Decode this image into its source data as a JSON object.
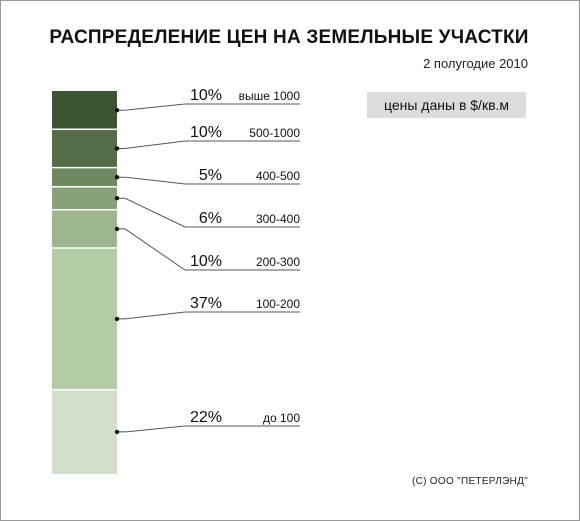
{
  "header": {
    "title": "РАСПРЕДЕЛЕНИЕ ЦЕН НА ЗЕМЕЛЬНЫЕ УЧАСТКИ",
    "subtitle": "2 полугодие 2010"
  },
  "note": "цены даны в $/кв.м",
  "copyright": "(С) ООО \"ПЕТЕРЛЭНД\"",
  "chart_data": {
    "type": "bar",
    "stacked": true,
    "title": "РАСПРЕДЕЛЕНИЕ ЦЕН НА ЗЕМЕЛЬНЫЕ УЧАСТКИ",
    "subtitle": "2 полугодие 2010",
    "unit": "%",
    "segments": [
      {
        "category": "выше 1000",
        "value": 10,
        "label": "10%",
        "color": "#3b5535"
      },
      {
        "category": "500-1000",
        "value": 10,
        "label": "10%",
        "color": "#556e49"
      },
      {
        "category": "400-500",
        "value": 5,
        "label": "5%",
        "color": "#6e8862"
      },
      {
        "category": "300-400",
        "value": 6,
        "label": "6%",
        "color": "#87a17b"
      },
      {
        "category": "200-300",
        "value": 10,
        "label": "10%",
        "color": "#9db690"
      },
      {
        "category": "100-200",
        "value": 37,
        "label": "37%",
        "color": "#b2cda5"
      },
      {
        "category": "до 100",
        "value": 22,
        "label": "22%",
        "color": "#d2e0cb"
      }
    ]
  }
}
